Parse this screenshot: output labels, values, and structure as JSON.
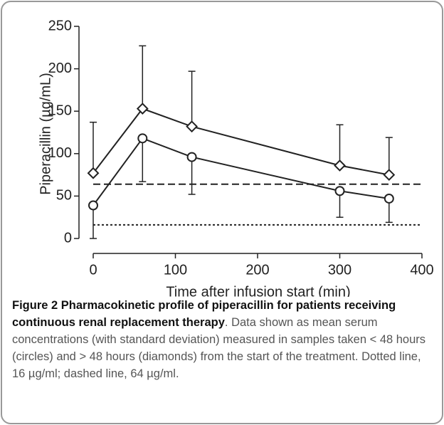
{
  "chart_data": {
    "type": "line",
    "x_label": "Time after infusion start (min)",
    "y_label": "Piperacillin (µg/mL)",
    "x": [
      0,
      60,
      120,
      300,
      360
    ],
    "series": [
      {
        "marker": "diamond",
        "color": "#222222",
        "values": [
          77,
          153,
          132,
          86,
          75
        ],
        "errors": [
          60,
          74,
          65,
          48,
          44
        ],
        "error_direction": "up"
      },
      {
        "marker": "circle",
        "color": "#222222",
        "values": [
          39,
          118,
          96,
          56,
          47
        ],
        "errors": [
          39,
          51,
          44,
          31,
          28
        ],
        "error_direction": "down"
      }
    ],
    "hlines": [
      {
        "value": 64,
        "style": "dashed"
      },
      {
        "value": 16,
        "style": "dotted"
      }
    ],
    "xlim": [
      0,
      400
    ],
    "xticks": [
      0,
      100,
      200,
      300,
      400
    ],
    "ylim": [
      0,
      250
    ],
    "yticks": [
      0,
      50,
      100,
      150,
      200,
      250
    ]
  },
  "caption": {
    "label": "Figure 2",
    "title": "Pharmacokinetic profile of piperacillin for patients receiving continuous renal replacement therapy",
    "text": ". Data shown as mean serum concentrations (with standard deviation) measured in samples taken < 48 hours (circles) and > 48 hours (diamonds) from the start of the treatment. Dotted line, 16 µg/ml; dashed line, 64 µg/ml."
  }
}
